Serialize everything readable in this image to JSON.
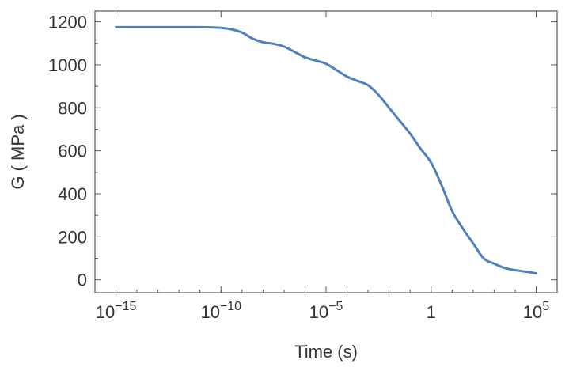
{
  "chart_data": {
    "type": "line",
    "xlabel": "Time (s)",
    "ylabel": "G ( MPa )",
    "xscale": "log",
    "xlim": [
      1e-16,
      1000000.0
    ],
    "ylim": [
      -60,
      1250
    ],
    "x_ticks": [
      {
        "value": 1e-15,
        "base": "10",
        "exp": "−15"
      },
      {
        "value": 1e-10,
        "base": "10",
        "exp": "−10"
      },
      {
        "value": 1e-05,
        "base": "10",
        "exp": "−5"
      },
      {
        "value": 1,
        "base": "1",
        "exp": ""
      },
      {
        "value": 100000.0,
        "base": "10",
        "exp": "5"
      }
    ],
    "y_ticks": [
      0,
      200,
      400,
      600,
      800,
      1000,
      1200
    ],
    "line_color": "#4f81bd",
    "series": [
      {
        "x": [
          1e-15,
          1e-14,
          1e-13,
          1e-12,
          1e-11,
          1e-10,
          3.16e-10,
          1e-09,
          3.16e-09,
          1e-08,
          3.16e-08,
          1e-07,
          3.16e-07,
          1e-06,
          3.16e-06,
          1e-05,
          3.16e-05,
          0.0001,
          0.000316,
          0.001,
          0.00316,
          0.01,
          0.0316,
          0.1,
          0.316,
          1,
          3.16,
          10,
          31.6,
          100,
          316,
          1000,
          3160,
          10000.0,
          31600.0,
          100000.0
        ],
        "y": [
          1175,
          1175,
          1175,
          1175,
          1175,
          1172,
          1165,
          1150,
          1122,
          1105,
          1098,
          1085,
          1060,
          1035,
          1020,
          1005,
          975,
          945,
          925,
          905,
          860,
          800,
          740,
          680,
          610,
          545,
          440,
          320,
          240,
          170,
          100,
          75,
          55,
          45,
          38,
          30
        ]
      }
    ]
  }
}
